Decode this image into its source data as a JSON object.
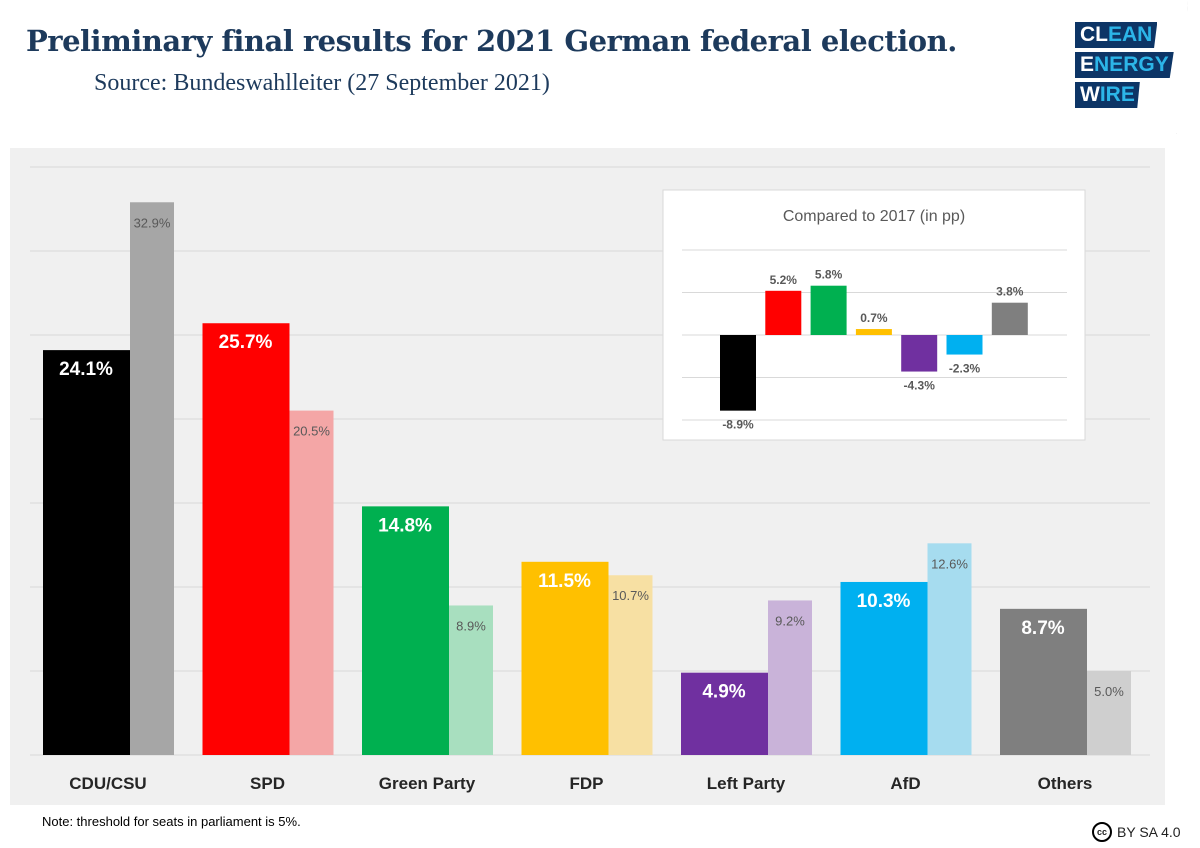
{
  "header": {
    "title": "Preliminary final results for 2021 German federal election.",
    "subtitle": "Source: Bundeswahlleiter (27 September 2021)"
  },
  "logo": {
    "lines": [
      "CLEAN",
      "ENERGY",
      "WIRE"
    ]
  },
  "footer": {
    "note": "Note: threshold for seats in parliament is 5%.",
    "license": "BY SA 4.0",
    "license_icon": "cc-icon"
  },
  "chart_data": [
    {
      "type": "bar",
      "title": "",
      "categories": [
        "CDU/CSU",
        "SPD",
        "Green Party",
        "FDP",
        "Left Party",
        "AfD",
        "Others"
      ],
      "series": [
        {
          "name": "2021",
          "values": [
            24.1,
            25.7,
            14.8,
            11.5,
            4.9,
            10.3,
            8.7
          ],
          "labels": [
            "24.1%",
            "25.7%",
            "14.8%",
            "11.5%",
            "4.9%",
            "10.3%",
            "8.7%"
          ]
        },
        {
          "name": "2017",
          "values": [
            32.9,
            20.5,
            8.9,
            10.7,
            9.2,
            12.6,
            5.0
          ],
          "labels": [
            "32.9%",
            "20.5%",
            "8.9%",
            "10.7%",
            "9.2%",
            "12.6%",
            "5.0%"
          ]
        }
      ],
      "colors": [
        "#000000",
        "#ff0000",
        "#00b050",
        "#ffc000",
        "#7030a0",
        "#00b0f0",
        "#7f7f7f"
      ],
      "colors_2017": [
        "#a6a6a6",
        "#f4a6a6",
        "#a8dfbf",
        "#f7e0a3",
        "#c9b3d9",
        "#a6dcef",
        "#cfcfcf"
      ],
      "ylim": [
        0,
        35
      ],
      "grid": true,
      "ystep": 5
    },
    {
      "type": "bar",
      "title": "Compared to 2017 (in pp)",
      "categories": [
        "CDU/CSU",
        "SPD",
        "Green Party",
        "FDP",
        "Left Party",
        "AfD",
        "Others"
      ],
      "values": [
        -8.9,
        5.2,
        5.8,
        0.7,
        -4.3,
        -2.3,
        3.8
      ],
      "labels": [
        "-8.9%",
        "5.2%",
        "5.8%",
        "0.7%",
        "-4.3%",
        "-2.3%",
        "3.8%"
      ],
      "ylim": [
        -10,
        10
      ],
      "grid": true,
      "ystep": 5
    }
  ]
}
